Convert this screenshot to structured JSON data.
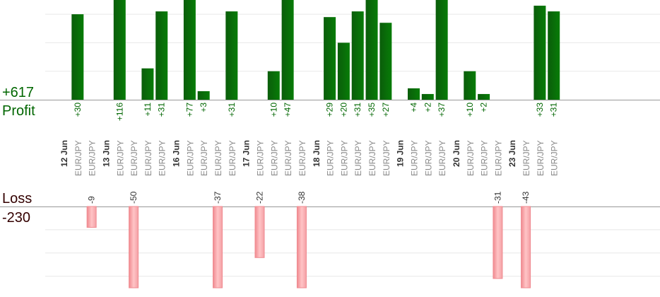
{
  "profit": {
    "label": "Profit",
    "total": "+617",
    "color": "#006600"
  },
  "loss": {
    "label": "Loss",
    "total": "-230",
    "color": "#330000"
  },
  "colors": {
    "profit_bar_dark": "#0a5d0a",
    "profit_bar_light": "#087c08",
    "loss_bar_fill": "#ffb6b9",
    "loss_bar_edge": "#f08a90",
    "profit_value_text": "#006600",
    "loss_value_text": "#333333",
    "pair_text": "#8a8a8a",
    "date_text": "#333333",
    "grid": "#e8e8e8",
    "baseline": "#999999"
  },
  "chart_data": {
    "type": "bar",
    "title": "",
    "xlabel": "",
    "ylabel": "",
    "profit_ylim": [
      0,
      35
    ],
    "loss_ylim": [
      0,
      35
    ],
    "slots": [
      {
        "kind": "date",
        "text": "12 Jun"
      },
      {
        "kind": "trade",
        "pair": "EUR/JPY",
        "value": 30
      },
      {
        "kind": "trade",
        "pair": "EUR/JPY",
        "value": -9
      },
      {
        "kind": "date",
        "text": "13 Jun"
      },
      {
        "kind": "trade",
        "pair": "EUR/JPY",
        "value": 116
      },
      {
        "kind": "trade",
        "pair": "EUR/JPY",
        "value": -50
      },
      {
        "kind": "trade",
        "pair": "EUR/JPY",
        "value": 11
      },
      {
        "kind": "trade",
        "pair": "EUR/JPY",
        "value": 31
      },
      {
        "kind": "date",
        "text": "16 Jun"
      },
      {
        "kind": "trade",
        "pair": "EUR/JPY",
        "value": 77
      },
      {
        "kind": "trade",
        "pair": "EUR/JPY",
        "value": 3
      },
      {
        "kind": "trade",
        "pair": "EUR/JPY",
        "value": -37
      },
      {
        "kind": "trade",
        "pair": "EUR/JPY",
        "value": 31
      },
      {
        "kind": "date",
        "text": "17 Jun"
      },
      {
        "kind": "trade",
        "pair": "EUR/JPY",
        "value": -22
      },
      {
        "kind": "trade",
        "pair": "EUR/JPY",
        "value": 10
      },
      {
        "kind": "trade",
        "pair": "EUR/JPY",
        "value": 47
      },
      {
        "kind": "trade",
        "pair": "EUR/JPY",
        "value": -38
      },
      {
        "kind": "date",
        "text": "18 Jun"
      },
      {
        "kind": "trade",
        "pair": "EUR/JPY",
        "value": 29
      },
      {
        "kind": "trade",
        "pair": "EUR/JPY",
        "value": 20
      },
      {
        "kind": "trade",
        "pair": "EUR/JPY",
        "value": 31
      },
      {
        "kind": "trade",
        "pair": "EUR/JPY",
        "value": 35
      },
      {
        "kind": "trade",
        "pair": "EUR/JPY",
        "value": 27
      },
      {
        "kind": "date",
        "text": "19 Jun"
      },
      {
        "kind": "trade",
        "pair": "EUR/JPY",
        "value": 4
      },
      {
        "kind": "trade",
        "pair": "EUR/JPY",
        "value": 2
      },
      {
        "kind": "trade",
        "pair": "EUR/JPY",
        "value": 37
      },
      {
        "kind": "date",
        "text": "20 Jun"
      },
      {
        "kind": "trade",
        "pair": "EUR/JPY",
        "value": 10
      },
      {
        "kind": "trade",
        "pair": "EUR/JPY",
        "value": 2
      },
      {
        "kind": "trade",
        "pair": "EUR/JPY",
        "value": -31
      },
      {
        "kind": "date",
        "text": "23 Jun"
      },
      {
        "kind": "trade",
        "pair": "EUR/JPY",
        "value": -43
      },
      {
        "kind": "trade",
        "pair": "EUR/JPY",
        "value": 33
      },
      {
        "kind": "trade",
        "pair": "EUR/JPY",
        "value": 31
      }
    ]
  }
}
